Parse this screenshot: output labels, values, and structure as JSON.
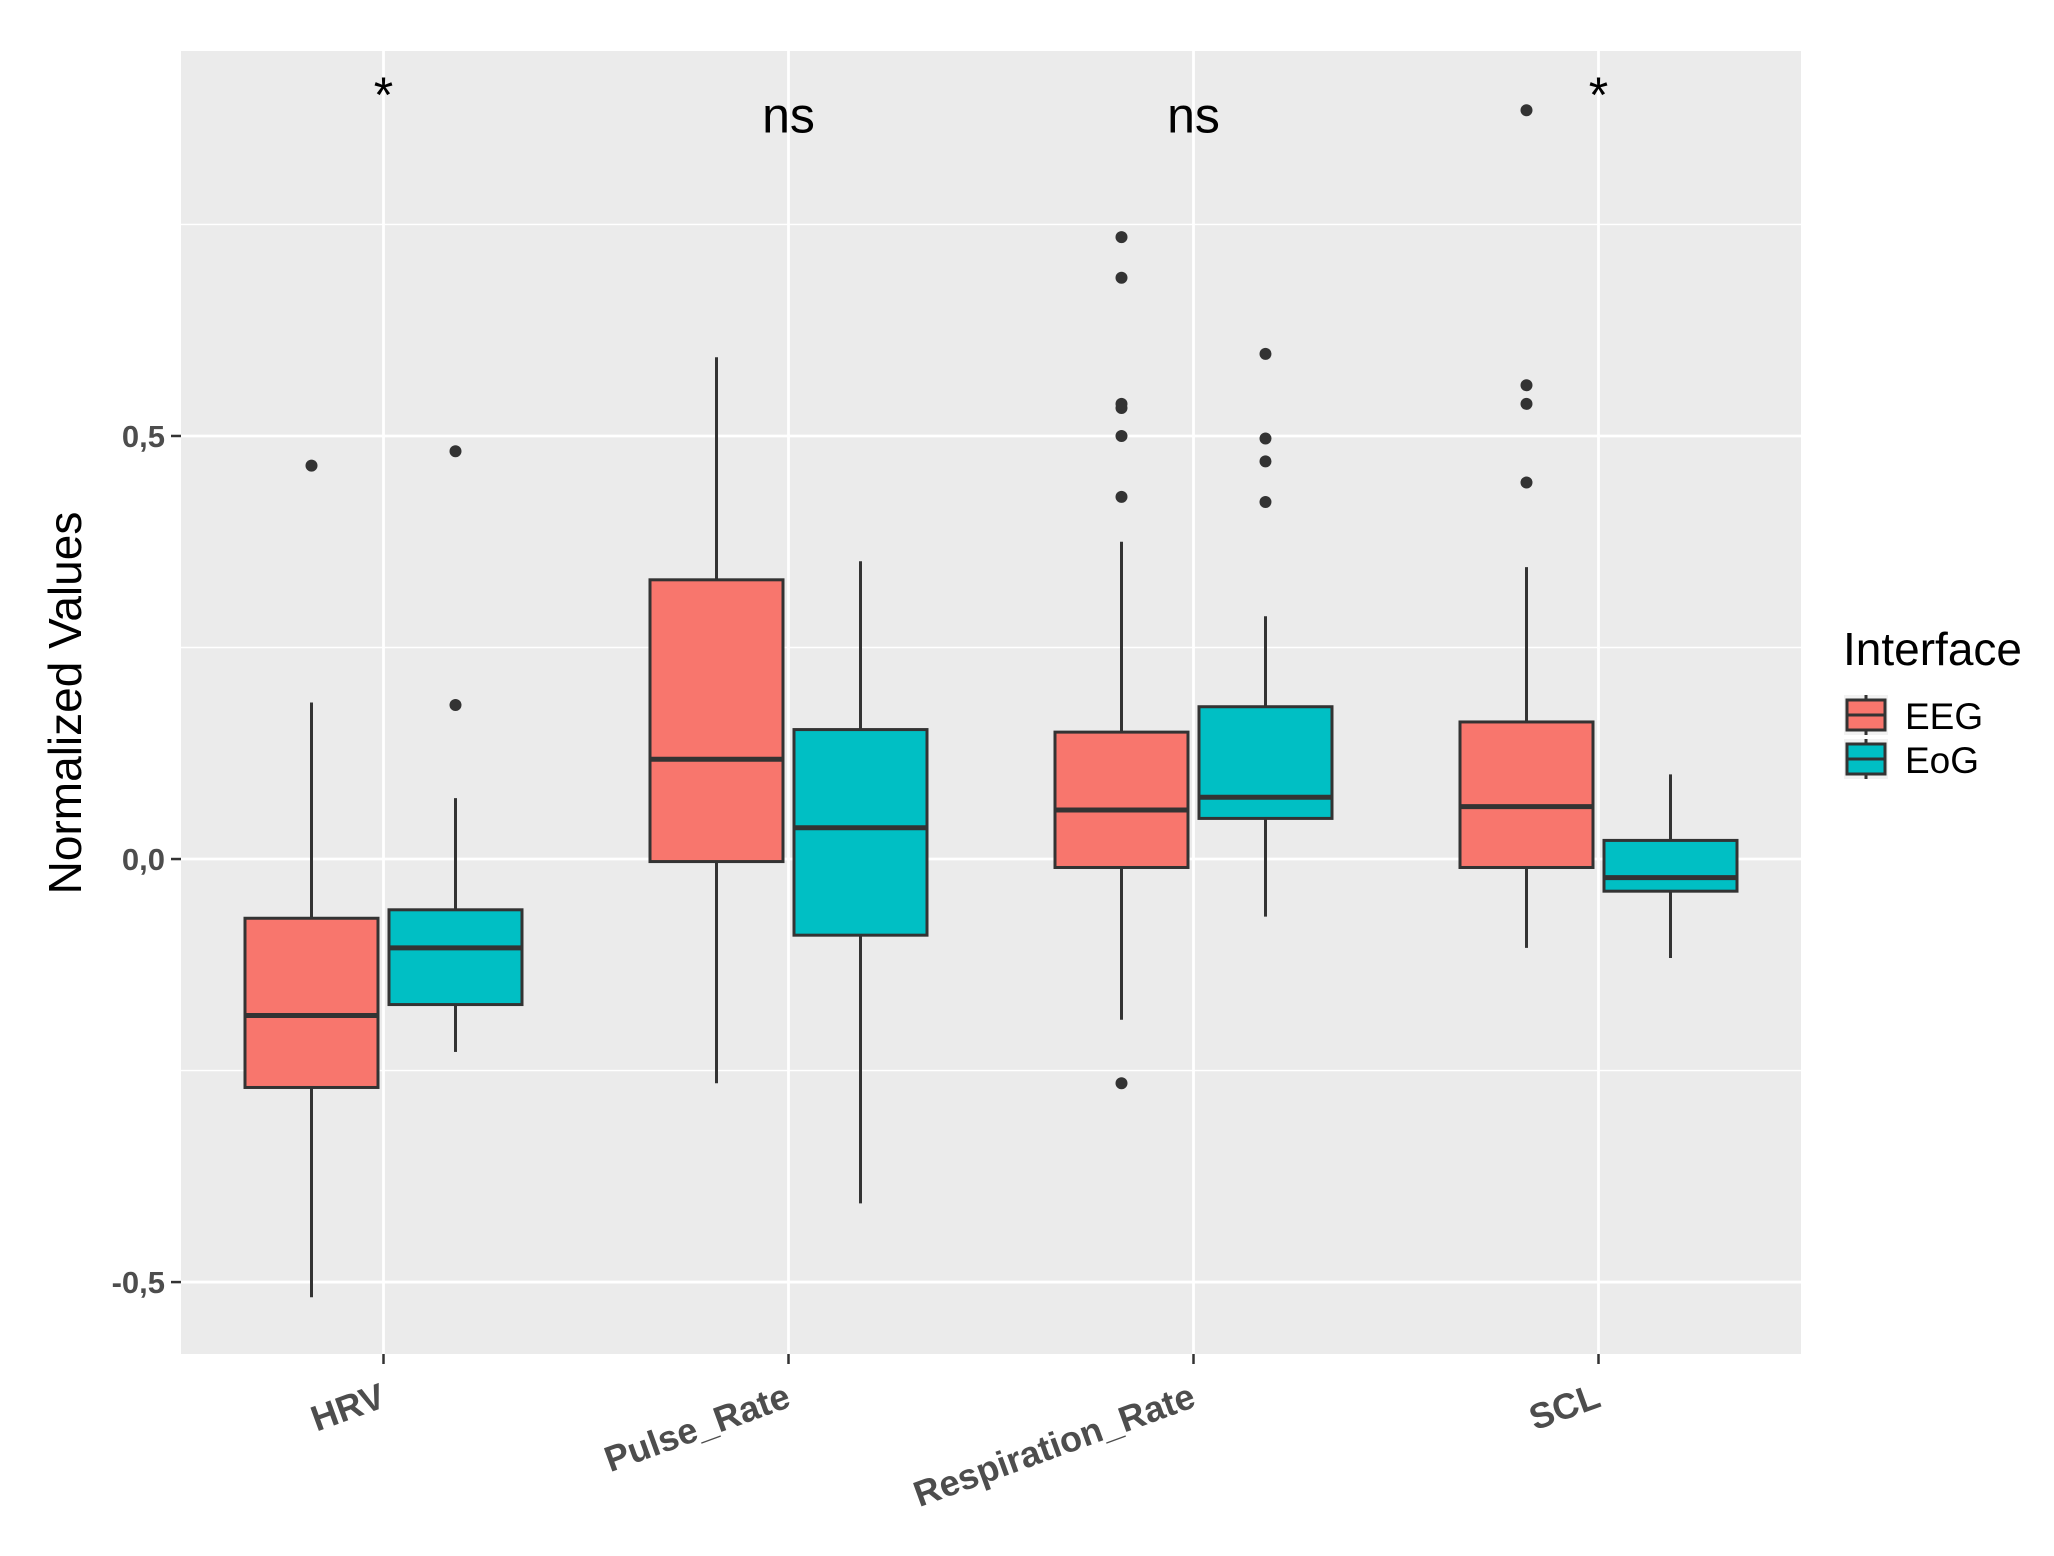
{
  "chart_data": {
    "type": "boxplot",
    "ylabel": "Normalized Values",
    "xlabel": "",
    "ylim": [
      -0.585,
      0.955
    ],
    "y_ticks": [
      -0.5,
      0.0,
      0.5
    ],
    "y_tick_labels": [
      "-0,5",
      "0,0",
      "0,5"
    ],
    "grid": true,
    "categories": [
      "HRV",
      "Pulse_Rate",
      "Respiration_Rate",
      "SCL"
    ],
    "significance": [
      "*",
      "ns",
      "ns",
      "*"
    ],
    "significance_y": [
      0.89,
      0.88,
      0.88,
      0.89
    ],
    "legend": {
      "title": "Interface",
      "placement": "right",
      "entries": [
        "EEG",
        "EoG"
      ]
    },
    "colors": {
      "EEG": "#F8766D",
      "EoG": "#00BFC4",
      "panel_bg": "#EBEBEB",
      "grid": "#FFFFFF",
      "outline": "#333333"
    },
    "series": [
      {
        "name": "EEG",
        "boxes": [
          {
            "category": "HRV",
            "whisker_low": -0.518,
            "q1": -0.27,
            "median": -0.185,
            "q3": -0.07,
            "whisker_high": 0.185,
            "outliers": [
              0.465
            ]
          },
          {
            "category": "Pulse_Rate",
            "whisker_low": -0.265,
            "q1": -0.003,
            "median": 0.118,
            "q3": 0.33,
            "whisker_high": 0.593,
            "outliers": []
          },
          {
            "category": "Respiration_Rate",
            "whisker_low": -0.19,
            "q1": -0.01,
            "median": 0.058,
            "q3": 0.15,
            "whisker_high": 0.375,
            "outliers": [
              -0.265,
              0.428,
              0.5,
              0.533,
              0.538,
              0.687,
              0.735
            ]
          },
          {
            "category": "SCL",
            "whisker_low": -0.105,
            "q1": -0.01,
            "median": 0.062,
            "q3": 0.162,
            "whisker_high": 0.345,
            "outliers": [
              0.445,
              0.538,
              0.56,
              0.885
            ]
          }
        ]
      },
      {
        "name": "EoG",
        "boxes": [
          {
            "category": "HRV",
            "whisker_low": -0.228,
            "q1": -0.172,
            "median": -0.105,
            "q3": -0.06,
            "whisker_high": 0.072,
            "outliers": [
              0.182,
              0.482
            ]
          },
          {
            "category": "Pulse_Rate",
            "whisker_low": -0.407,
            "q1": -0.09,
            "median": 0.037,
            "q3": 0.153,
            "whisker_high": 0.352,
            "outliers": []
          },
          {
            "category": "Respiration_Rate",
            "whisker_low": -0.068,
            "q1": 0.048,
            "median": 0.073,
            "q3": 0.18,
            "whisker_high": 0.287,
            "outliers": [
              0.422,
              0.47,
              0.497,
              0.597
            ]
          },
          {
            "category": "SCL",
            "whisker_low": -0.117,
            "q1": -0.038,
            "median": -0.022,
            "q3": 0.022,
            "whisker_high": 0.1,
            "outliers": []
          }
        ]
      }
    ]
  }
}
